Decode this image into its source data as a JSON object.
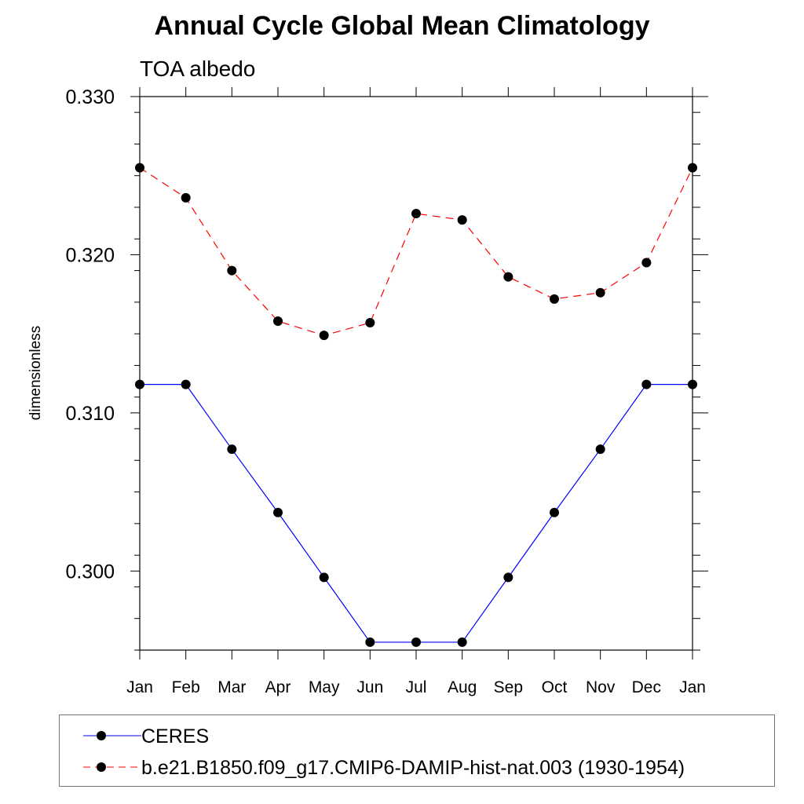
{
  "chart_data": {
    "type": "line",
    "title": "Annual Cycle Global Mean Climatology",
    "subtitle": "TOA albedo",
    "ylabel": "dimensionless",
    "xlabel": "",
    "categories": [
      "Jan",
      "Feb",
      "Mar",
      "Apr",
      "May",
      "Jun",
      "Jul",
      "Aug",
      "Sep",
      "Oct",
      "Nov",
      "Dec",
      "Jan"
    ],
    "ylim": [
      0.295,
      0.33
    ],
    "yticks": [
      "0.330",
      "0.320",
      "0.310",
      "0.300"
    ],
    "grid": false,
    "legend_position": "bottom",
    "series": [
      {
        "name": "CERES",
        "color": "#0000ff",
        "line_style": "solid",
        "marker": "filled-circle",
        "values": [
          0.3118,
          0.3118,
          0.3077,
          0.3037,
          0.2996,
          0.2955,
          0.2955,
          0.2955,
          0.2996,
          0.3037,
          0.3077,
          0.3118,
          0.3118
        ]
      },
      {
        "name": "b.e21.B1850.f09_g17.CMIP6-DAMIP-hist-nat.003 (1930-1954)",
        "color": "#ff0000",
        "line_style": "dashed",
        "marker": "filled-circle",
        "values": [
          0.3255,
          0.3236,
          0.319,
          0.3158,
          0.3149,
          0.3157,
          0.3226,
          0.3222,
          0.3186,
          0.3172,
          0.3176,
          0.3195,
          0.3255
        ]
      }
    ]
  }
}
